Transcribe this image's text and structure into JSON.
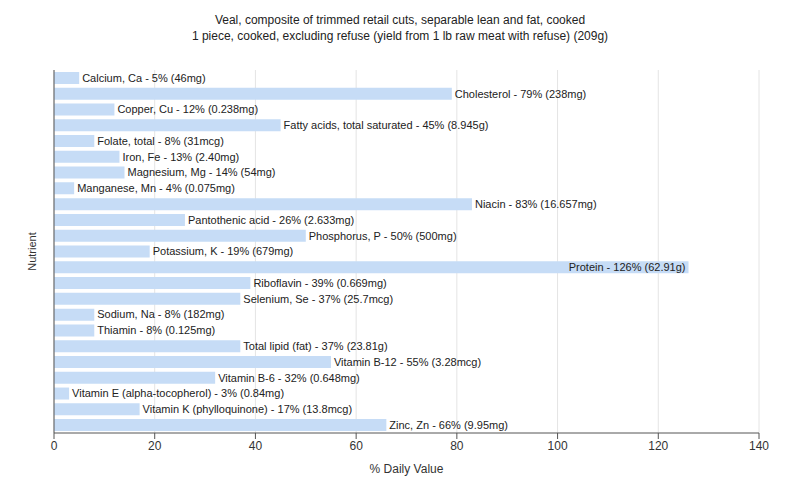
{
  "chart_data": {
    "type": "bar",
    "title": "Veal, composite of trimmed retail cuts, separable lean and fat, cooked",
    "subtitle": "1 piece, cooked, excluding refuse (yield from 1 lb raw meat with refuse) (209g)",
    "x_label": "% Daily Value",
    "y_label": "Nutrient",
    "orientation": "horizontal",
    "categories": [
      "Calcium, Ca",
      "Cholesterol",
      "Copper, Cu",
      "Fatty acids, total saturated",
      "Folate, total",
      "Iron, Fe",
      "Magnesium, Mg",
      "Manganese, Mn",
      "Niacin",
      "Pantothenic acid",
      "Phosphorus, P",
      "Potassium, K",
      "Protein",
      "Riboflavin",
      "Selenium, Se",
      "Sodium, Na",
      "Thiamin",
      "Total lipid (fat)",
      "Vitamin B-12",
      "Vitamin B-6",
      "Vitamin E (alpha-tocopherol)",
      "Vitamin K (phylloquinone)",
      "Zinc, Zn"
    ],
    "values": [
      5,
      79,
      12,
      45,
      8,
      13,
      14,
      4,
      83,
      26,
      50,
      19,
      126,
      39,
      37,
      8,
      8,
      37,
      55,
      32,
      3,
      17,
      66
    ],
    "value_labels": [
      "Calcium, Ca - 5% (46mg)",
      "Cholesterol - 79% (238mg)",
      "Copper, Cu - 12% (0.238mg)",
      "Fatty acids, total saturated - 45% (8.945g)",
      "Folate, total - 8% (31mcg)",
      "Iron, Fe - 13% (2.40mg)",
      "Magnesium, Mg - 14% (54mg)",
      "Manganese, Mn - 4% (0.075mg)",
      "Niacin - 83% (16.657mg)",
      "Pantothenic acid - 26% (2.633mg)",
      "Phosphorus, P - 50% (500mg)",
      "Potassium, K - 19% (679mg)",
      "Protein - 126% (62.91g)",
      "Riboflavin - 39% (0.669mg)",
      "Selenium, Se - 37% (25.7mcg)",
      "Sodium, Na - 8% (182mg)",
      "Thiamin - 8% (0.125mg)",
      "Total lipid (fat) - 37% (23.81g)",
      "Vitamin B-12 - 55% (3.28mcg)",
      "Vitamin B-6 - 32% (0.648mg)",
      "Vitamin E (alpha-tocopherol) - 3% (0.84mg)",
      "Vitamin K (phylloquinone) - 17% (13.8mcg)",
      "Zinc, Zn - 66% (9.95mg)"
    ],
    "data_labels": true,
    "color": "#c6dcf6",
    "xlim": [
      0,
      140
    ],
    "xticks": [
      0,
      20,
      40,
      60,
      80,
      100,
      120,
      140
    ],
    "grid": true,
    "tick_labels": "x"
  }
}
